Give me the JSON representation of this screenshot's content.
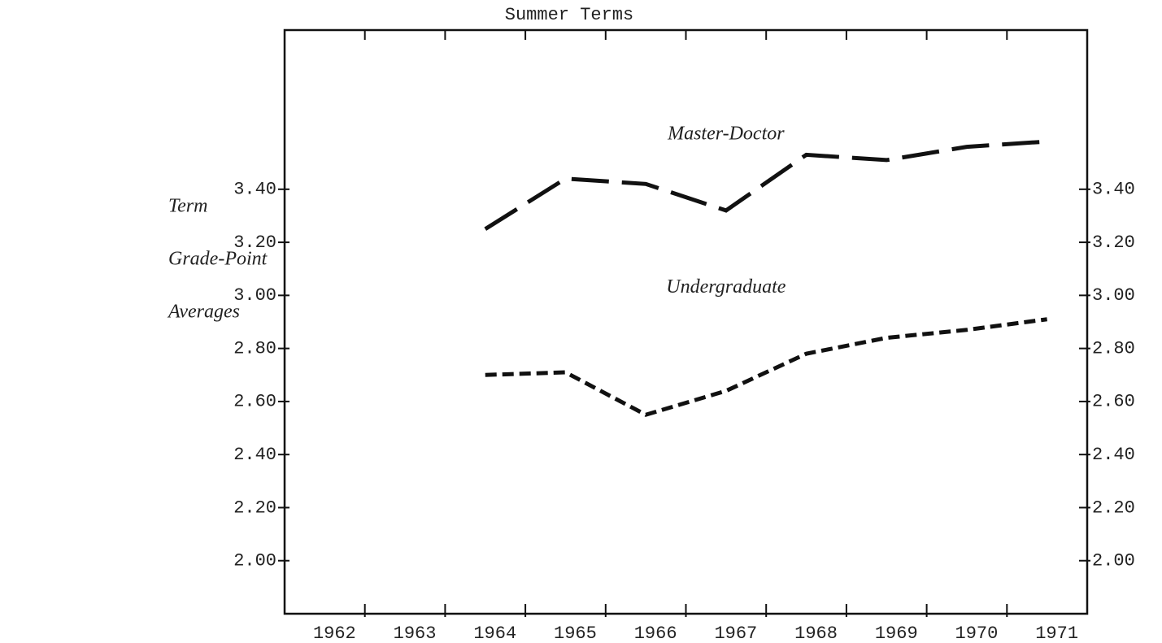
{
  "chart_data": {
    "type": "line",
    "title": "Summer Terms",
    "ylabel": [
      "Term",
      "Grade-Point",
      "Averages"
    ],
    "categories": [
      "1962",
      "1963",
      "1964",
      "1965",
      "1966",
      "1967",
      "1968",
      "1969",
      "1970",
      "1971"
    ],
    "series": [
      {
        "name": "Master-Doctor",
        "color": "#111111",
        "dash": "long",
        "values": [
          null,
          null,
          3.25,
          3.44,
          3.42,
          3.32,
          3.53,
          3.51,
          3.56,
          3.58
        ]
      },
      {
        "name": "Undergraduate",
        "color": "#111111",
        "dash": "short",
        "values": [
          null,
          null,
          2.7,
          2.71,
          2.55,
          2.64,
          2.78,
          2.84,
          2.87,
          2.91
        ]
      }
    ],
    "ylim": [
      1.8,
      4.0
    ],
    "yticks": [
      {
        "value": 2.0,
        "label": "2.00"
      },
      {
        "value": 2.2,
        "label": "2.20"
      },
      {
        "value": 2.4,
        "label": "2.40"
      },
      {
        "value": 2.6,
        "label": "2.60"
      },
      {
        "value": 2.8,
        "label": "2.80"
      },
      {
        "value": 3.0,
        "label": "3.00"
      },
      {
        "value": 3.2,
        "label": "3.20"
      },
      {
        "value": 3.4,
        "label": "3.40"
      }
    ],
    "grid": false
  }
}
